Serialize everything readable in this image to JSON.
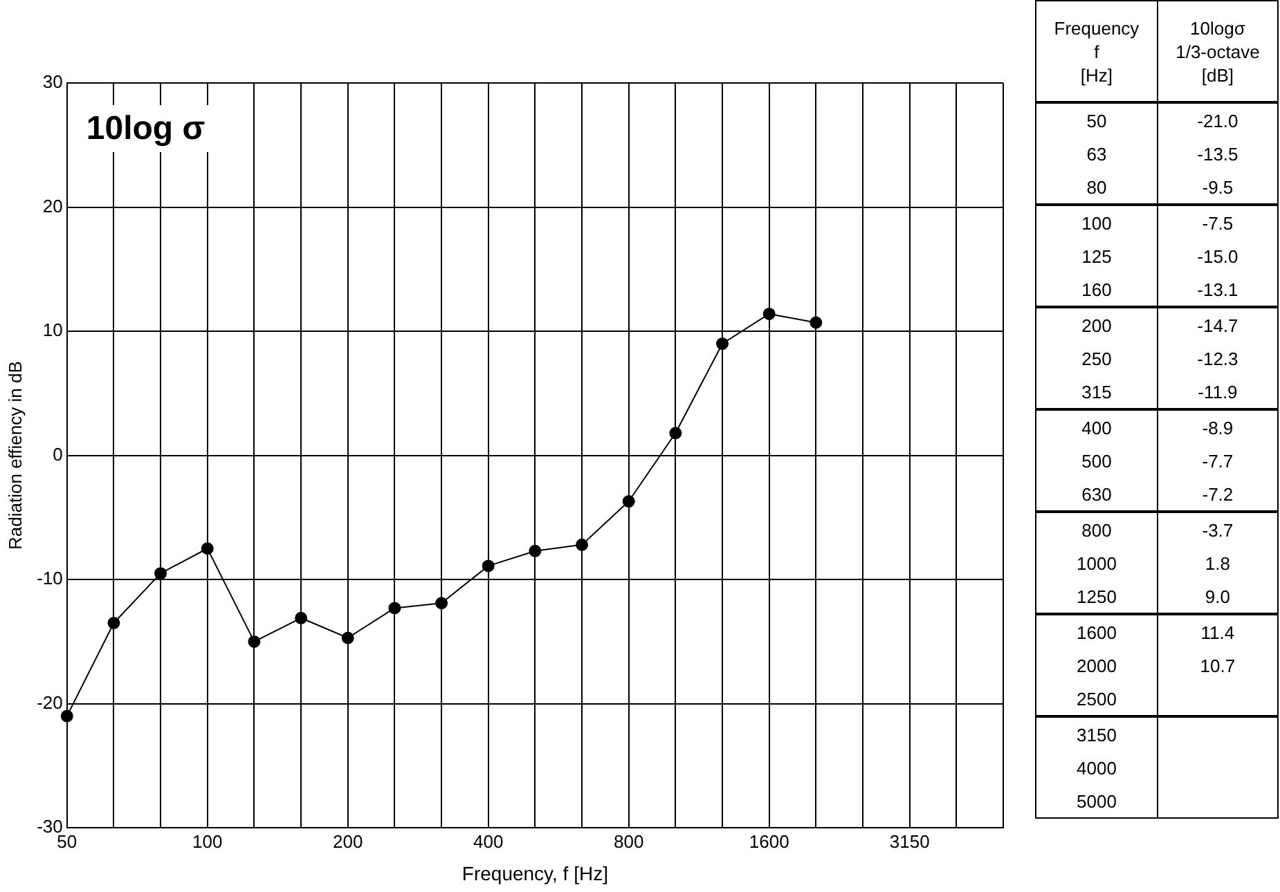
{
  "chart_data": [
    {
      "type": "line",
      "xlabel": "Frequency, f [Hz]",
      "ylabel": "Radiation effiency in dB",
      "annotations": [
        "10log σ"
      ],
      "categories": [
        "50",
        null,
        null,
        "100",
        null,
        null,
        "200",
        null,
        null,
        "400",
        null,
        null,
        "800",
        null,
        null,
        "1600",
        null,
        null,
        "3150",
        null,
        null
      ],
      "series": [
        {
          "color": "#000000",
          "values": [
            -21.0,
            -13.5,
            -9.5,
            -7.5,
            -15.0,
            -13.1,
            -14.7,
            -12.3,
            -11.9,
            -8.9,
            -7.7,
            -7.2,
            -3.7,
            1.8,
            9.0,
            11.4,
            10.7,
            null,
            null,
            null,
            null
          ]
        }
      ],
      "ylim": [
        -30,
        30
      ],
      "yticks": [
        -30,
        -20,
        -10,
        0,
        10,
        20,
        30
      ],
      "grid": true,
      "marker": "circle",
      "line_style": "solid"
    },
    {
      "type": "other",
      "annotations": [
        "Frequency",
        "f",
        "[Hz]",
        "10logσ",
        "1/3-octave",
        "[dB]"
      ],
      "categories": [
        "50",
        "63",
        "80",
        "100",
        "125",
        "160",
        "200",
        "250",
        "315",
        "400",
        "500",
        "630",
        "800",
        "1000",
        "1250",
        "1600",
        "2000",
        "2500",
        "3150",
        "4000",
        "5000"
      ],
      "value_labels": [
        "-21.0",
        "-13.5",
        "-9.5",
        "-7.5",
        "-15.0",
        "-13.1",
        "-14.7",
        "-12.3",
        "-11.9",
        "-8.9",
        "-7.7",
        "-7.2",
        "-3.7",
        "1.8",
        "9.0",
        "11.4",
        "10.7",
        null,
        null,
        null,
        null
      ]
    }
  ]
}
